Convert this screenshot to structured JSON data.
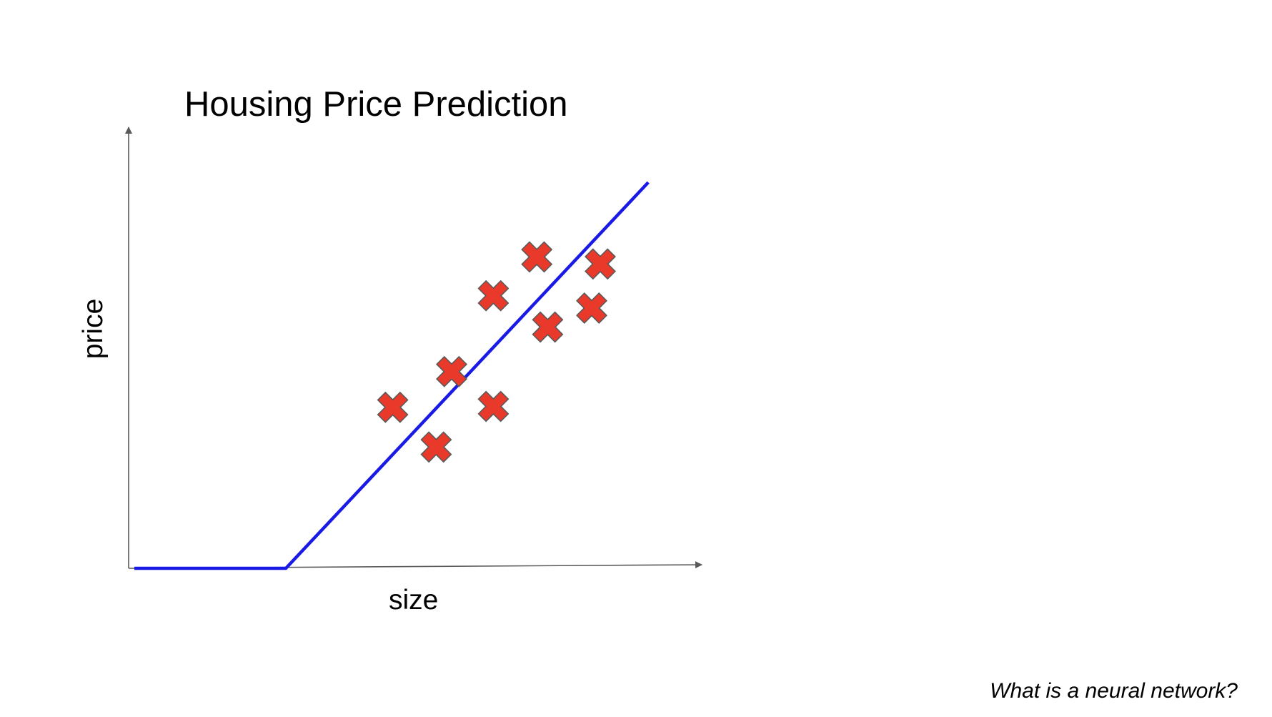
{
  "chart_data": {
    "type": "scatter",
    "title": "Housing Price Prediction",
    "xlabel": "size",
    "ylabel": "price",
    "xlim": [
      0,
      100
    ],
    "ylim": [
      0,
      100
    ],
    "grid": false,
    "series": [
      {
        "type": "scatter",
        "marker": "x",
        "color": "#e8392b",
        "points": [
          {
            "x": 46.2,
            "y": 36.5
          },
          {
            "x": 53.8,
            "y": 27.5
          },
          {
            "x": 56.5,
            "y": 44.6
          },
          {
            "x": 63.8,
            "y": 36.7
          },
          {
            "x": 63.8,
            "y": 61.8
          },
          {
            "x": 71.4,
            "y": 70.6
          },
          {
            "x": 73.3,
            "y": 54.7
          },
          {
            "x": 81.0,
            "y": 59.0
          },
          {
            "x": 82.5,
            "y": 69.0
          }
        ]
      },
      {
        "type": "line",
        "color": "#1a1ae6",
        "points": [
          {
            "x": 1.0,
            "y": 0.0
          },
          {
            "x": 27.5,
            "y": 0.0
          },
          {
            "x": 90.9,
            "y": 87.5
          }
        ]
      }
    ]
  },
  "footer": {
    "note": "What is a neural network?"
  }
}
